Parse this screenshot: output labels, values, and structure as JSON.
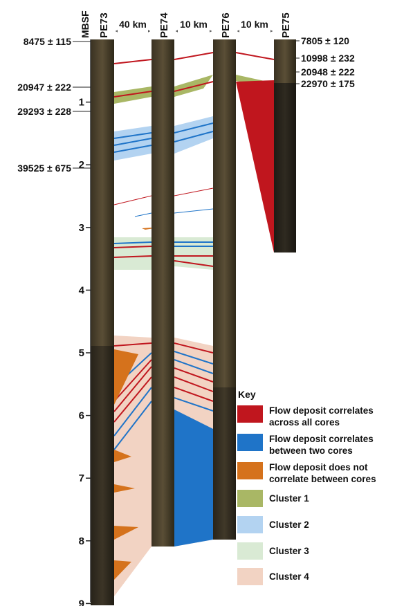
{
  "axis": {
    "unit_label": "MBSF",
    "depth_ticks": [
      "1",
      "2",
      "3",
      "4",
      "5",
      "6",
      "7",
      "8",
      "9"
    ]
  },
  "cores": [
    {
      "name": "PE73"
    },
    {
      "name": "PE74"
    },
    {
      "name": "PE76"
    },
    {
      "name": "PE75"
    }
  ],
  "spacings": [
    "40 km",
    "10 km",
    "10 km"
  ],
  "dates_left": [
    "8475 ± 115",
    "20947 ± 222",
    "29293 ± 228",
    "39525 ± 675"
  ],
  "dates_right": [
    "7805 ± 120",
    "10998 ± 232",
    "20948 ± 222",
    "22970 ± 175"
  ],
  "key": {
    "title": "Key",
    "items": [
      {
        "label": "Flow deposit correlates\nacross all cores",
        "color": "#c0161e"
      },
      {
        "label": "Flow deposit correlates\nbetween two cores",
        "color": "#1f74c8"
      },
      {
        "label": "Flow deposit does not\ncorrelate between cores",
        "color": "#d5721c"
      },
      {
        "label": "Cluster 1",
        "color": "#a9b765"
      },
      {
        "label": "Cluster 2",
        "color": "#b3d3f1"
      },
      {
        "label": "Cluster 3",
        "color": "#d9ead4"
      },
      {
        "label": "Cluster 4",
        "color": "#f2d3c3"
      }
    ]
  },
  "colors": {
    "red": "#c0161e",
    "blue": "#1f74c8",
    "orange": "#d5721c",
    "cluster1": "#a9b765",
    "cluster2": "#b3d3f1",
    "cluster3": "#d9ead4",
    "cluster4": "#f2d3c3",
    "core_dark": "#2a2418",
    "core_light": "#5e5238"
  }
}
